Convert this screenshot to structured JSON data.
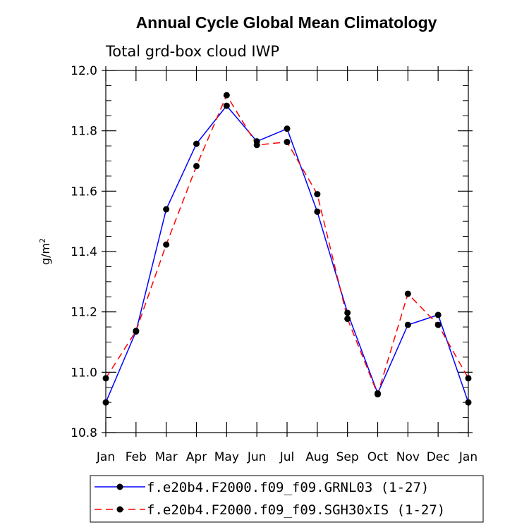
{
  "chart_data": {
    "type": "line",
    "title": "Annual Cycle Global Mean Climatology",
    "subtitle": "Total grd-box cloud IWP",
    "ylabel": "g/m",
    "ylabel_sup": "2",
    "xlabel": "",
    "categories": [
      "Jan",
      "Feb",
      "Mar",
      "Apr",
      "May",
      "Jun",
      "Jul",
      "Aug",
      "Sep",
      "Oct",
      "Nov",
      "Dec",
      "Jan"
    ],
    "ylim": [
      10.8,
      12.0
    ],
    "yticks": [
      "10.8",
      "11.0",
      "11.2",
      "11.4",
      "11.6",
      "11.8",
      "12.0"
    ],
    "series": [
      {
        "name": "f.e20b4.F2000.f09_f09.GRNL03 (1-27)",
        "color": "#0000ff",
        "dash": "solid",
        "values": [
          10.9,
          11.135,
          11.54,
          11.757,
          11.883,
          11.765,
          11.807,
          11.532,
          11.197,
          10.93,
          11.157,
          11.19,
          10.9
        ]
      },
      {
        "name": "f.e20b4.F2000.f09_f09.SGH30xIS (1-27)",
        "color": "#ff0000",
        "dash": "dashed",
        "values": [
          10.98,
          11.137,
          11.423,
          11.683,
          11.918,
          11.753,
          11.763,
          11.59,
          11.177,
          10.927,
          11.26,
          11.157,
          10.98
        ]
      }
    ],
    "marker_color": "#000000",
    "legend_position": "bottom"
  }
}
